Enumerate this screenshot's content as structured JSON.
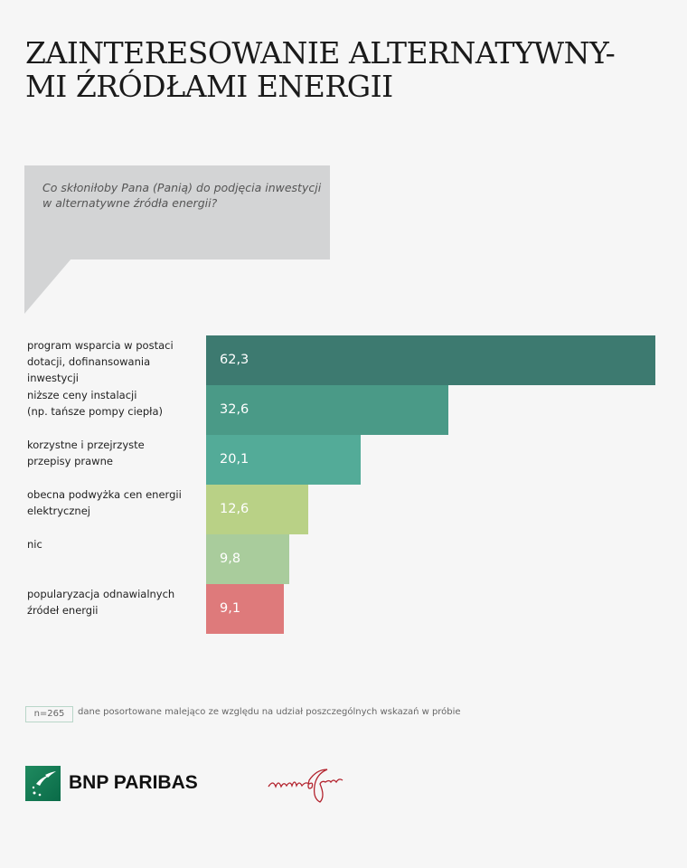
{
  "title_line1": "ZAINTERESOWANIE ALTERNATYWNY-",
  "title_line2": "MI ŹRÓDŁAMI ENERGII",
  "question_line1": "Co skłoniłoby Pana (Panią) do podjęcia inwestycji",
  "question_line2": "w alternatywne źródła energii?",
  "chart_data": {
    "type": "bar",
    "orientation": "horizontal",
    "categories": [
      [
        "program wsparcia w postaci",
        "dotacji, dofinansowania inwestycji"
      ],
      [
        "niższe ceny instalacji",
        "(np. tańsze pompy ciepła)"
      ],
      [
        "korzystne i przejrzyste",
        "przepisy prawne"
      ],
      [
        "obecna podwyżka cen energii",
        "elektrycznej"
      ],
      [
        "nic",
        ""
      ],
      [
        "popularyzacja odnawialnych",
        "źródeł energii"
      ]
    ],
    "values": [
      62.3,
      32.6,
      20.1,
      12.6,
      9.8,
      9.1
    ],
    "value_labels": [
      "62,3",
      "32,6",
      "20,1",
      "12,6",
      "9,8",
      "9,1"
    ],
    "colors": [
      "#3d7a70",
      "#4a9a87",
      "#53ab98",
      "#b9d186",
      "#a9cc9c",
      "#de7a7b"
    ]
  },
  "footer": {
    "n": "n=265",
    "note": "dane posortowane malejąco ze względu na udział poszczególnych wskazań w próbie",
    "brand": "BNP PARIBAS",
    "signature": "martin&jacob"
  }
}
